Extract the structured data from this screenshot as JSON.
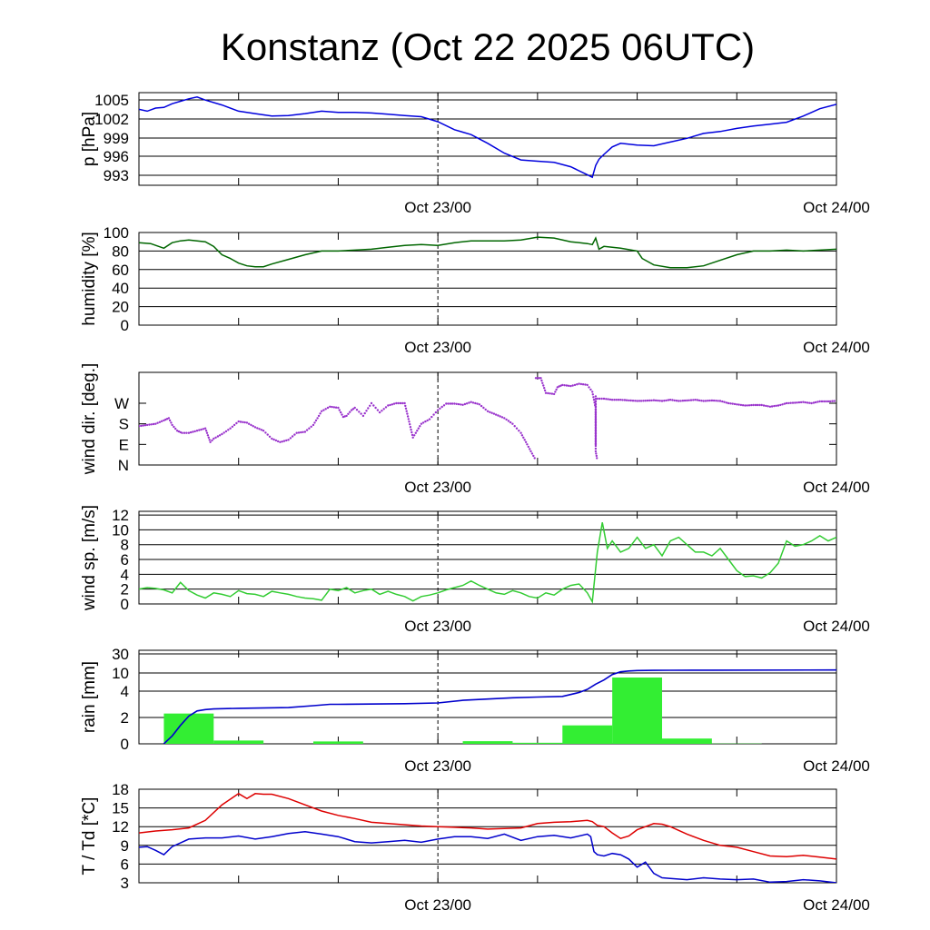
{
  "title": "Konstanz (Oct 22 2025 06UTC)",
  "x_tick_labels": [
    "Oct 23/00",
    "Oct 24/00"
  ],
  "chart_data": [
    {
      "id": "pressure",
      "type": "line",
      "ylabel": "p [hPa]",
      "ylim": [
        991,
        1006
      ],
      "yticks": [
        "1005",
        "1002",
        "999",
        "996",
        "993"
      ],
      "xlim_hours": [
        0,
        42
      ],
      "color": "#0000dd",
      "series": [
        {
          "name": "p",
          "x": [
            0,
            0.5,
            1,
            1.5,
            2,
            2.5,
            3,
            3.5,
            4,
            5,
            6,
            7,
            8,
            9,
            10,
            11,
            12,
            13,
            14,
            15,
            16,
            17,
            18,
            19,
            20,
            21,
            22,
            23,
            24,
            25,
            26,
            27,
            27.3,
            27.5,
            27.7,
            28,
            28.5,
            29,
            30,
            31,
            32,
            33,
            34,
            35,
            36,
            37,
            38,
            39,
            40,
            41,
            42
          ],
          "values": [
            1003.3,
            1003,
            1003.5,
            1003.6,
            1004.2,
            1004.6,
            1005,
            1005.3,
            1004.8,
            1004,
            1003,
            1002.6,
            1002.2,
            1002.3,
            1002.6,
            1003,
            1002.8,
            1002.8,
            1002.7,
            1002.5,
            1002.3,
            1002.1,
            1001.3,
            1000,
            999.2,
            997.8,
            996.2,
            995.1,
            994.9,
            994.7,
            994,
            992.7,
            992.3,
            994.2,
            995.2,
            996,
            997.2,
            997.8,
            997.5,
            997.4,
            998,
            998.6,
            999.4,
            999.7,
            1000.2,
            1000.6,
            1000.9,
            1001.2,
            1002.2,
            1003.4,
            1004.1
          ]
        }
      ]
    },
    {
      "id": "humidity",
      "type": "line",
      "ylabel": "humidity [%]",
      "ylim": [
        0,
        100
      ],
      "yticks": [
        "100",
        "80",
        "60",
        "40",
        "20",
        "0"
      ],
      "xlim_hours": [
        0,
        42
      ],
      "color": "#006600",
      "series": [
        {
          "name": "RH",
          "x": [
            0,
            0.7,
            1.5,
            2,
            2.5,
            3,
            4,
            4.5,
            5,
            5.5,
            6,
            6.5,
            7,
            7.5,
            8,
            9,
            10,
            11,
            12,
            13,
            14,
            15,
            16,
            17,
            18,
            19,
            20,
            21,
            22,
            23,
            24,
            25,
            26,
            27,
            27.3,
            27.5,
            27.7,
            28,
            29,
            30,
            30.3,
            31,
            32,
            33,
            34,
            35,
            36,
            37,
            38,
            39,
            40,
            41,
            42
          ],
          "values": [
            89,
            88,
            83,
            89,
            91,
            92,
            90,
            85,
            76,
            72,
            67,
            64,
            63,
            63,
            66,
            71,
            76,
            80,
            80,
            81,
            82,
            84,
            86,
            87,
            86,
            89,
            91,
            91,
            91,
            92,
            95,
            94,
            90,
            88,
            87,
            94,
            82,
            85,
            83,
            80,
            72,
            65,
            62,
            62,
            64,
            70,
            76,
            80,
            80,
            81,
            80,
            81,
            82
          ]
        }
      ]
    },
    {
      "id": "wind_direction",
      "type": "scatter",
      "ylabel": "wind dir. [deg.]",
      "ylim": [
        0,
        405
      ],
      "yticks": [
        "W",
        "S",
        "E",
        "N"
      ],
      "ytick_values": [
        270,
        180,
        90,
        0
      ],
      "xlim_hours": [
        0,
        42
      ],
      "color": "#9933cc",
      "series": [
        {
          "name": "dir-a",
          "x": [
            0,
            0.5,
            1,
            1.5,
            1.8,
            2,
            2.3,
            2.6,
            3,
            3.5,
            4,
            4.2,
            4.3,
            4.5,
            5,
            5.5,
            6,
            6.5,
            7,
            7.5,
            8,
            8.5,
            9,
            9.5,
            10,
            10.5,
            11,
            11.5,
            12,
            12.3,
            12.5,
            12.8,
            13,
            13.5,
            14,
            14.5,
            15,
            15.5,
            16,
            16.5,
            17,
            17.5,
            18,
            18.5,
            19,
            19.5,
            20,
            20.5,
            21,
            21.5,
            22,
            22.5,
            23,
            23.3,
            23.6,
            23.9
          ],
          "values": [
            170,
            175,
            180,
            195,
            205,
            175,
            150,
            140,
            140,
            150,
            160,
            120,
            100,
            115,
            135,
            160,
            190,
            185,
            165,
            150,
            115,
            100,
            110,
            140,
            145,
            175,
            235,
            255,
            250,
            210,
            215,
            240,
            250,
            215,
            270,
            230,
            260,
            270,
            270,
            120,
            180,
            200,
            240,
            268,
            268,
            263,
            275,
            265,
            235,
            220,
            205,
            180,
            140,
            100,
            60,
            20
          ]
        },
        {
          "name": "dir-b",
          "x": [
            23.9,
            24.2,
            24.5,
            25,
            25.2,
            25.5,
            26,
            26.5,
            27,
            27.3,
            27.5
          ],
          "values": [
            380,
            380,
            315,
            310,
            340,
            350,
            345,
            355,
            350,
            320,
            250
          ]
        },
        {
          "name": "dir-c",
          "x": [
            27.5,
            27.5,
            27.5,
            27.5,
            27.6
          ],
          "values": [
            90,
            300,
            200,
            60,
            20
          ]
        },
        {
          "name": "dir-d",
          "x": [
            27.6,
            28,
            28.5,
            29,
            30,
            30.5,
            31,
            31.5,
            32,
            32.5,
            33,
            33.5,
            34,
            34.5,
            35,
            35.5,
            36,
            36.5,
            37,
            37.5,
            38,
            38.5,
            39,
            39.5,
            40,
            40.5,
            41,
            41.5,
            42
          ],
          "values": [
            290,
            290,
            285,
            285,
            280,
            281,
            283,
            280,
            285,
            280,
            282,
            285,
            280,
            282,
            280,
            270,
            265,
            260,
            262,
            262,
            255,
            260,
            270,
            272,
            275,
            270,
            278,
            278,
            280
          ]
        }
      ]
    },
    {
      "id": "wind_speed",
      "type": "line",
      "ylabel": "wind sp. [m/s]",
      "ylim": [
        0,
        12.5
      ],
      "yticks": [
        "12",
        "10",
        "8",
        "6",
        "4",
        "2",
        "0"
      ],
      "xlim_hours": [
        0,
        42
      ],
      "color": "#33cc33",
      "series": [
        {
          "name": "ff",
          "x": [
            0,
            0.5,
            1,
            1.5,
            2,
            2.5,
            3,
            3.5,
            4,
            4.5,
            5,
            5.5,
            6,
            6.5,
            7,
            7.5,
            8,
            8.5,
            9,
            9.5,
            10,
            10.5,
            11,
            11.5,
            12,
            12.5,
            13,
            13.5,
            14,
            14.5,
            15,
            15.5,
            16,
            16.5,
            17,
            17.5,
            18,
            18.5,
            19,
            19.5,
            20,
            20.5,
            21,
            21.5,
            22,
            22.5,
            23,
            23.5,
            24,
            24.5,
            25,
            25.5,
            26,
            26.5,
            27,
            27.3,
            27.6,
            27.9,
            28.2,
            28.5,
            29,
            29.5,
            30,
            30.5,
            31,
            31.5,
            32,
            32.5,
            33,
            33.5,
            34,
            34.5,
            35,
            35.5,
            36,
            36.5,
            37,
            37.5,
            38,
            38.5,
            39,
            39.5,
            40,
            40.5,
            41,
            41.5,
            42
          ],
          "values": [
            2,
            2.2,
            2.1,
            1.9,
            1.5,
            2.9,
            1.8,
            1.2,
            0.8,
            1.5,
            1.3,
            1.0,
            1.8,
            1.4,
            1.3,
            1.0,
            1.7,
            1.5,
            1.3,
            1.0,
            0.8,
            0.7,
            0.5,
            2,
            1.8,
            2.2,
            1.5,
            1.8,
            2.0,
            1.3,
            1.7,
            1.3,
            1.0,
            0.4,
            1.0,
            1.2,
            1.5,
            1.9,
            2.2,
            2.5,
            3.1,
            2.5,
            2,
            1.5,
            1.3,
            1.8,
            1.5,
            1.0,
            0.8,
            1.5,
            1.2,
            2.0,
            2.5,
            2.7,
            1.5,
            0.3,
            7,
            11,
            7.5,
            8.5,
            7.0,
            7.5,
            9,
            7.5,
            8,
            6.5,
            8.5,
            9,
            8,
            7,
            7,
            6.5,
            7.5,
            6.0,
            4.5,
            3.7,
            3.8,
            3.5,
            4.2,
            5.5,
            8.5,
            7.8,
            8.0,
            8.5,
            9.2,
            8.5,
            9.0
          ]
        }
      ]
    },
    {
      "id": "rain",
      "type": "bar",
      "ylabel": "rain [mm]",
      "yticks": [
        "30",
        "10",
        "4",
        "2",
        "0"
      ],
      "ytick_values": [
        30,
        10,
        4,
        2,
        0
      ],
      "xlim_hours": [
        0,
        42
      ],
      "bar_color": "#33ee33",
      "line_color": "#0000cc",
      "bars": [
        {
          "start": 1.5,
          "end": 4.5,
          "value": 2.3
        },
        {
          "start": 4.5,
          "end": 7.5,
          "value": 0.25
        },
        {
          "start": 10.5,
          "end": 13.5,
          "value": 0.18
        },
        {
          "start": 19.5,
          "end": 22.5,
          "value": 0.2
        },
        {
          "start": 22.5,
          "end": 25.5,
          "value": 0.08
        },
        {
          "start": 25.5,
          "end": 28.5,
          "value": 1.4
        },
        {
          "start": 28.5,
          "end": 31.5,
          "value": 8.5
        },
        {
          "start": 31.5,
          "end": 34.5,
          "value": 0.4
        },
        {
          "start": 34.5,
          "end": 37.5,
          "value": 0.02
        }
      ],
      "accumulated": {
        "x": [
          1.5,
          2,
          2.5,
          3,
          3.5,
          4,
          4.5,
          6,
          9,
          10.5,
          11.5,
          12,
          16,
          18,
          19.5,
          21,
          22.5,
          24,
          25.5,
          26.5,
          27,
          27.5,
          28,
          28.5,
          29,
          29.5,
          30,
          31,
          32,
          34.5,
          42
        ],
        "values": [
          0,
          0.6,
          1.4,
          2.1,
          2.5,
          2.6,
          2.65,
          2.7,
          2.75,
          2.9,
          3.0,
          3.0,
          3.05,
          3.1,
          3.3,
          3.4,
          3.5,
          3.55,
          3.6,
          3.9,
          4.6,
          6.3,
          7.7,
          9.5,
          11.2,
          12.1,
          12.6,
          12.8,
          12.9,
          13.0,
          13.1
        ]
      }
    },
    {
      "id": "temperature",
      "type": "line",
      "ylabel": "T / Td [*C]",
      "ylim": [
        3,
        18
      ],
      "yticks": [
        "18",
        "15",
        "12",
        "9",
        "6",
        "3"
      ],
      "xlim_hours": [
        0,
        42
      ],
      "series": [
        {
          "name": "T",
          "color": "#dd0000",
          "x": [
            0,
            1,
            2,
            3,
            4,
            5,
            6,
            6.5,
            7,
            7.5,
            8,
            9,
            10,
            11,
            12,
            13,
            14,
            15,
            16,
            17,
            18,
            19,
            20,
            21,
            22,
            23,
            24,
            25,
            26,
            27,
            27.3,
            27.6,
            28,
            28.5,
            29,
            29.5,
            30,
            30.5,
            31,
            31.5,
            32,
            33,
            34,
            35,
            36,
            37,
            38,
            39,
            40,
            41,
            42
          ],
          "values": [
            11,
            11.3,
            11.5,
            11.8,
            13,
            15.5,
            17.3,
            16.5,
            17.3,
            17.2,
            17.2,
            16.5,
            15.5,
            14.5,
            13.8,
            13.3,
            12.7,
            12.5,
            12.3,
            12.1,
            12,
            11.9,
            11.8,
            11.6,
            11.7,
            11.8,
            12.5,
            12.7,
            12.8,
            13,
            12.8,
            12.2,
            12,
            11,
            10.1,
            10.5,
            11.5,
            12,
            12.5,
            12.4,
            12,
            10.8,
            9.8,
            9,
            8.7,
            8,
            7.3,
            7.2,
            7.4,
            7.1,
            6.8
          ]
        },
        {
          "name": "Td",
          "color": "#0000cc",
          "x": [
            0,
            0.5,
            1,
            1.5,
            2,
            3,
            4,
            5,
            6,
            7,
            8,
            9,
            10,
            11,
            12,
            13,
            14,
            15,
            16,
            17,
            18,
            19,
            20,
            21,
            22,
            23,
            24,
            25,
            26,
            27,
            27.2,
            27.4,
            27.6,
            28,
            28.5,
            29,
            29.5,
            30,
            30.5,
            31,
            31.5,
            32,
            33,
            34,
            35,
            36,
            37,
            38,
            39,
            40,
            41,
            42
          ],
          "values": [
            8.7,
            8.8,
            8.2,
            7.5,
            8.8,
            10,
            10.2,
            10.2,
            10.5,
            10,
            10.4,
            10.9,
            11.2,
            10.8,
            10.4,
            9.6,
            9.4,
            9.6,
            9.8,
            9.5,
            10,
            10.4,
            10.4,
            10.1,
            10.8,
            9.8,
            10.4,
            10.6,
            10.2,
            10.8,
            10.4,
            8,
            7.5,
            7.3,
            7.7,
            7.5,
            6.8,
            5.5,
            6.3,
            4.5,
            3.8,
            3.7,
            3.5,
            3.8,
            3.6,
            3.5,
            3.6,
            3.1,
            3.2,
            3.5,
            3.3,
            3
          ]
        }
      ]
    }
  ]
}
